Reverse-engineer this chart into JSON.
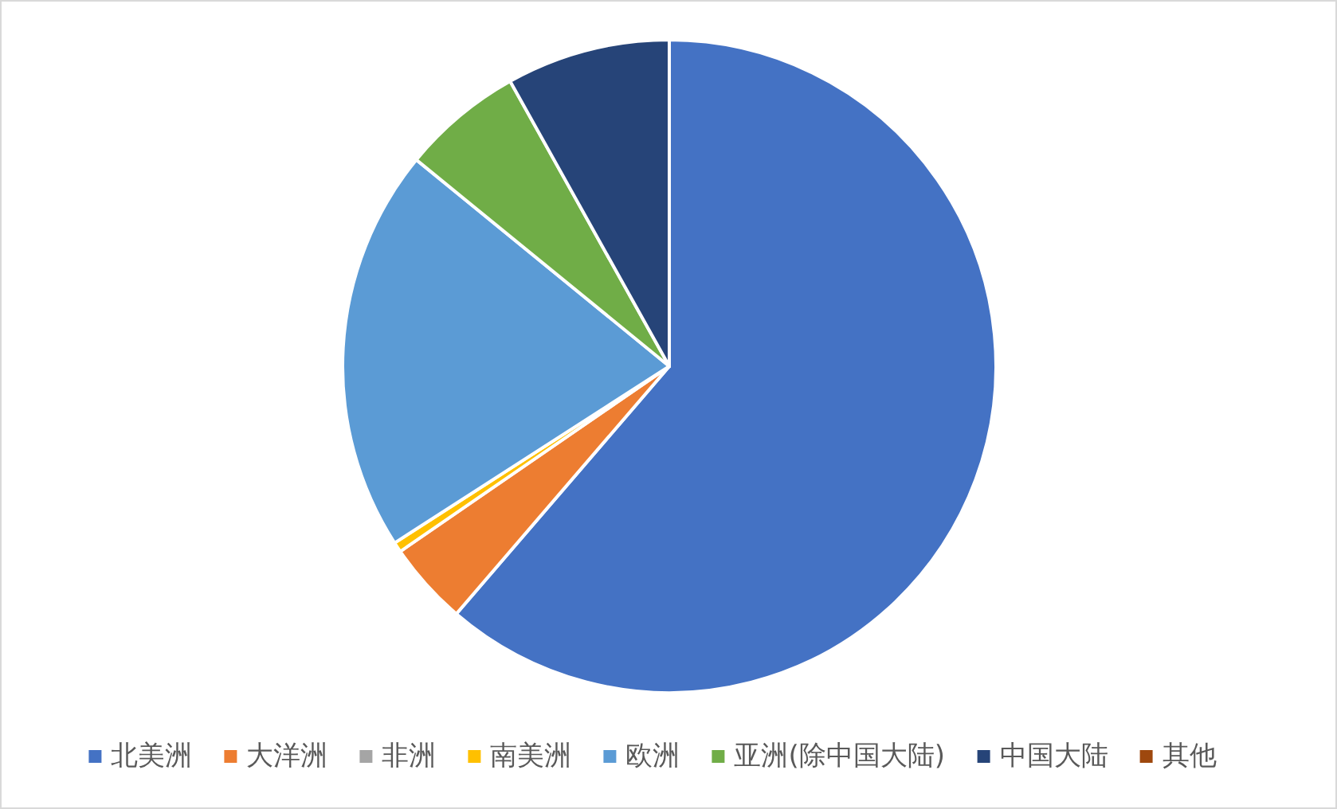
{
  "chart_data": {
    "type": "pie",
    "categories": [
      "北美洲",
      "大洋洲",
      "非洲",
      "南美洲",
      "欧洲",
      "亚洲(除中国大陆)",
      "中国大陆",
      "其他"
    ],
    "values": [
      61.3,
      4.1,
      0,
      0.5,
      20.0,
      6.0,
      8.1,
      0
    ],
    "colors": [
      "#4472c4",
      "#ed7d31",
      "#a5a5a5",
      "#ffc000",
      "#5b9bd5",
      "#70ad47",
      "#264478",
      "#9e480e"
    ],
    "legend": "bottom"
  }
}
